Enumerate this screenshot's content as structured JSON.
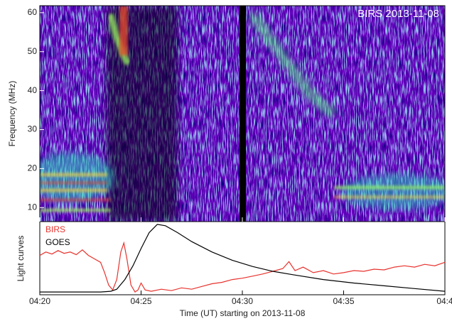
{
  "chart_data": [
    {
      "type": "spectrogram",
      "title": "BIRS 2013-11-08",
      "ylabel": "Frequency (MHz)",
      "ylim": [
        6.4,
        61.8
      ],
      "yticks": [
        10,
        20,
        30,
        40,
        50,
        60
      ]
    },
    {
      "type": "line",
      "ylabel": "Light curves",
      "xlabel": "Time (UT) starting on 2013-11-08",
      "xlim": [
        0,
        20
      ],
      "ylim": [
        -0.02,
        1.04
      ],
      "xticks": [
        {
          "value": 0,
          "label": "04:20"
        },
        {
          "value": 5,
          "label": "04:25"
        },
        {
          "value": 10,
          "label": "04:30"
        },
        {
          "value": 15,
          "label": "04:35"
        },
        {
          "value": 20,
          "label": "04:4"
        }
      ],
      "legend": "upper left",
      "series": [
        {
          "name": "BIRS",
          "color": "#e8322d",
          "x": [
            0,
            0.3,
            0.6,
            0.9,
            1.2,
            1.5,
            1.8,
            2.1,
            2.4,
            2.7,
            3.0,
            3.2,
            3.4,
            3.6,
            3.8,
            4.0,
            4.15,
            4.3,
            4.5,
            4.7,
            4.85,
            5.0,
            5.2,
            5.5,
            6.0,
            6.5,
            7.0,
            7.5,
            8.0,
            8.5,
            9.0,
            9.5,
            10.0,
            10.5,
            11.0,
            11.5,
            12.0,
            12.3,
            12.6,
            13.0,
            13.5,
            14.0,
            14.5,
            15.0,
            15.5,
            16.0,
            16.5,
            17.0,
            17.5,
            18.0,
            18.5,
            19.0,
            19.5,
            20.0
          ],
          "values": [
            0.55,
            0.6,
            0.57,
            0.62,
            0.58,
            0.6,
            0.56,
            0.63,
            0.55,
            0.5,
            0.45,
            0.3,
            0.12,
            0.05,
            0.2,
            0.6,
            0.73,
            0.5,
            0.12,
            0.02,
            0.05,
            0.15,
            0.05,
            0.03,
            0.06,
            0.04,
            0.08,
            0.06,
            0.1,
            0.14,
            0.16,
            0.2,
            0.22,
            0.25,
            0.28,
            0.32,
            0.36,
            0.46,
            0.33,
            0.38,
            0.3,
            0.33,
            0.28,
            0.3,
            0.33,
            0.32,
            0.35,
            0.34,
            0.38,
            0.4,
            0.38,
            0.42,
            0.4,
            0.45
          ]
        },
        {
          "name": "GOES",
          "color": "#000000",
          "x": [
            0,
            3,
            3.5,
            3.8,
            4.2,
            4.6,
            5.0,
            5.4,
            5.8,
            6.2,
            6.8,
            7.5,
            8.5,
            9.5,
            10.5,
            11.5,
            12.5,
            14,
            15.5,
            17,
            18.5,
            20
          ],
          "values": [
            0.02,
            0.02,
            0.03,
            0.06,
            0.2,
            0.4,
            0.65,
            0.88,
            1.0,
            0.98,
            0.88,
            0.75,
            0.6,
            0.48,
            0.39,
            0.32,
            0.27,
            0.2,
            0.15,
            0.11,
            0.07,
            0.03
          ]
        }
      ]
    }
  ]
}
